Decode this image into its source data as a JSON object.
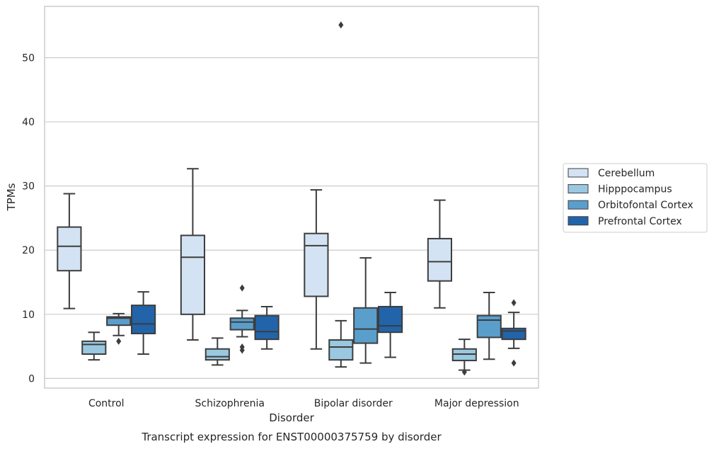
{
  "chart_data": {
    "type": "box",
    "xlabel": "Disorder",
    "ylabel": "TPMs",
    "caption": "Transcript expression for ENST00000375759 by disorder",
    "ylim": [
      -1.5,
      58
    ],
    "yticks": [
      0,
      10,
      20,
      30,
      40,
      50
    ],
    "grid": "horizontal",
    "legend_position": "right",
    "categories": [
      "Control",
      "Schizophrenia",
      "Bipolar disorder",
      "Major depression"
    ],
    "series": [
      {
        "name": "Cerebellum",
        "color": "#d3e3f3",
        "boxes": [
          {
            "whisker_low": 10.9,
            "q1": 16.8,
            "median": 20.6,
            "q3": 23.6,
            "whisker_high": 28.8,
            "outliers": []
          },
          {
            "whisker_low": 6.0,
            "q1": 10.0,
            "median": 18.9,
            "q3": 22.3,
            "whisker_high": 32.7,
            "outliers": []
          },
          {
            "whisker_low": 4.6,
            "q1": 12.8,
            "median": 20.7,
            "q3": 22.6,
            "whisker_high": 29.4,
            "outliers": []
          },
          {
            "whisker_low": 11.0,
            "q1": 15.2,
            "median": 18.2,
            "q3": 21.8,
            "whisker_high": 27.8,
            "outliers": []
          }
        ]
      },
      {
        "name": "Hipppocampus",
        "color": "#9ac8e0",
        "boxes": [
          {
            "whisker_low": 2.9,
            "q1": 3.8,
            "median": 5.3,
            "q3": 5.8,
            "whisker_high": 7.2,
            "outliers": []
          },
          {
            "whisker_low": 2.1,
            "q1": 2.9,
            "median": 3.4,
            "q3": 4.6,
            "whisker_high": 6.3,
            "outliers": []
          },
          {
            "whisker_low": 1.8,
            "q1": 2.9,
            "median": 4.9,
            "q3": 6.0,
            "whisker_high": 9.0,
            "outliers": [
              55.1
            ]
          },
          {
            "whisker_low": 1.3,
            "q1": 2.8,
            "median": 3.8,
            "q3": 4.6,
            "whisker_high": 6.1,
            "outliers": [
              1.0
            ]
          }
        ]
      },
      {
        "name": "Orbitofontal Cortex",
        "color": "#5a9ecc",
        "boxes": [
          {
            "whisker_low": 6.7,
            "q1": 8.3,
            "median": 9.4,
            "q3": 9.6,
            "whisker_high": 10.1,
            "outliers": [
              5.8
            ]
          },
          {
            "whisker_low": 6.5,
            "q1": 7.6,
            "median": 8.8,
            "q3": 9.4,
            "whisker_high": 10.6,
            "outliers": [
              14.1,
              4.9,
              4.4
            ]
          },
          {
            "whisker_low": 2.4,
            "q1": 5.5,
            "median": 7.7,
            "q3": 11.0,
            "whisker_high": 18.8,
            "outliers": []
          },
          {
            "whisker_low": 3.0,
            "q1": 6.4,
            "median": 9.1,
            "q3": 9.8,
            "whisker_high": 13.4,
            "outliers": []
          }
        ]
      },
      {
        "name": "Prefrontal Cortex",
        "color": "#2264a9",
        "boxes": [
          {
            "whisker_low": 3.8,
            "q1": 7.0,
            "median": 8.5,
            "q3": 11.4,
            "whisker_high": 13.5,
            "outliers": []
          },
          {
            "whisker_low": 4.6,
            "q1": 6.1,
            "median": 7.3,
            "q3": 9.8,
            "whisker_high": 11.2,
            "outliers": []
          },
          {
            "whisker_low": 3.3,
            "q1": 7.2,
            "median": 8.2,
            "q3": 11.2,
            "whisker_high": 13.4,
            "outliers": []
          },
          {
            "whisker_low": 4.7,
            "q1": 6.1,
            "median": 7.4,
            "q3": 7.8,
            "whisker_high": 10.3,
            "outliers": [
              11.8,
              2.4
            ]
          }
        ]
      }
    ]
  }
}
